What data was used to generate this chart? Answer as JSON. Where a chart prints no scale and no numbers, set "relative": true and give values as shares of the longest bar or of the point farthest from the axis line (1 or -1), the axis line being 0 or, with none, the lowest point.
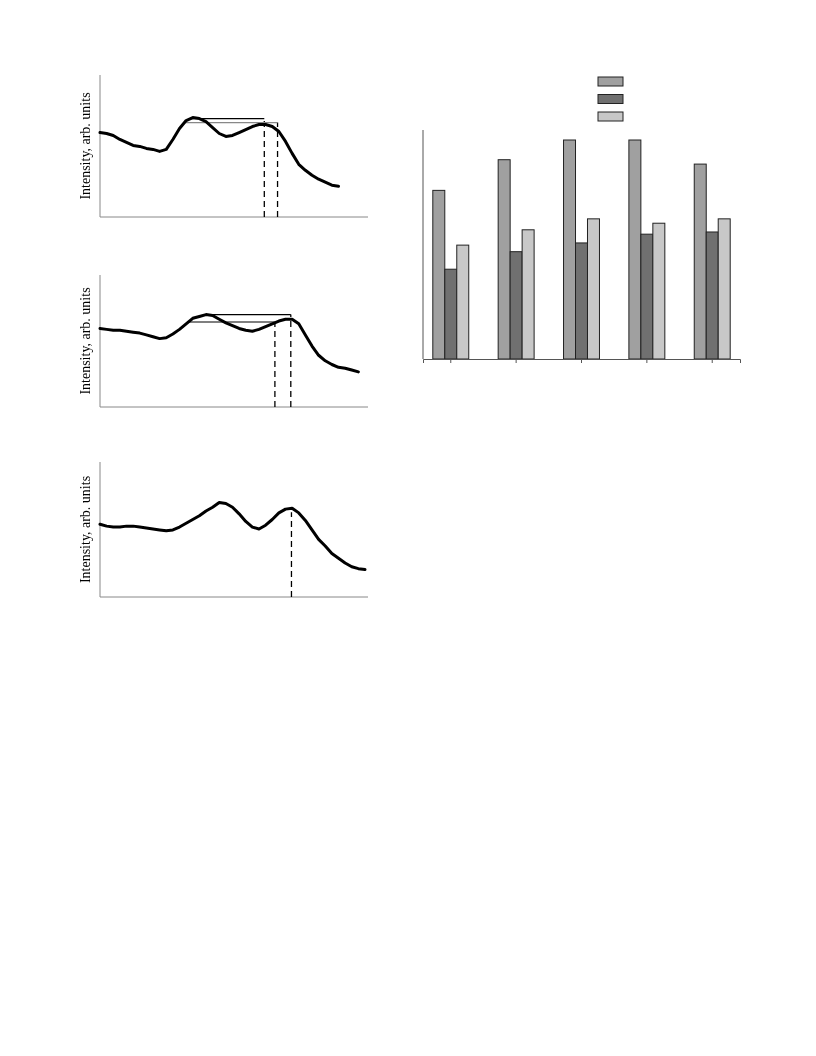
{
  "chart_data": [
    {
      "type": "line",
      "ylabel": "Intensity, arb. units",
      "relative": true,
      "categories": [
        null,
        null,
        null,
        null,
        null,
        null,
        null,
        null,
        null,
        null,
        null,
        null,
        null,
        null,
        null,
        null,
        null,
        null,
        null,
        null,
        null,
        null,
        null,
        null,
        null,
        null,
        null,
        null,
        null,
        null,
        null,
        null,
        null,
        null,
        null,
        null,
        null,
        null,
        null,
        null,
        null
      ],
      "series": [
        {
          "color": "#000000",
          "values": [
            0.85,
            0.84,
            0.82,
            0.78,
            0.75,
            0.72,
            0.71,
            0.69,
            0.68,
            0.66,
            0.68,
            0.78,
            0.89,
            0.97,
            1,
            0.99,
            0.96,
            0.9,
            0.84,
            0.81,
            0.82,
            0.85,
            0.88,
            0.91,
            0.93,
            0.93,
            0.91,
            0.86,
            0.76,
            0.64,
            0.53,
            0.47,
            0.42,
            0.38,
            0.35,
            0.32,
            0.31,
            null,
            null,
            null,
            null
          ]
        }
      ]
    },
    {
      "type": "line",
      "ylabel": "Intensity, arb. units",
      "relative": true,
      "categories": [
        null,
        null,
        null,
        null,
        null,
        null,
        null,
        null,
        null,
        null,
        null,
        null,
        null,
        null,
        null,
        null,
        null,
        null,
        null,
        null,
        null,
        null,
        null,
        null,
        null,
        null,
        null,
        null,
        null,
        null,
        null,
        null,
        null,
        null,
        null,
        null,
        null,
        null,
        null,
        null,
        null
      ],
      "series": [
        {
          "color": "#000000",
          "values": [
            0.85,
            0.84,
            0.83,
            0.83,
            0.82,
            0.81,
            0.8,
            0.78,
            0.76,
            0.74,
            0.75,
            0.79,
            0.84,
            0.9,
            0.96,
            0.98,
            1,
            0.99,
            0.95,
            0.91,
            0.88,
            0.85,
            0.83,
            0.82,
            0.84,
            0.87,
            0.9,
            0.93,
            0.95,
            0.95,
            0.9,
            0.78,
            0.66,
            0.56,
            0.5,
            0.46,
            0.43,
            0.42,
            0.4,
            0.38,
            null
          ]
        }
      ]
    },
    {
      "type": "line",
      "ylabel": "Intensity, arb. units",
      "relative": true,
      "categories": [
        null,
        null,
        null,
        null,
        null,
        null,
        null,
        null,
        null,
        null,
        null,
        null,
        null,
        null,
        null,
        null,
        null,
        null,
        null,
        null,
        null,
        null,
        null,
        null,
        null,
        null,
        null,
        null,
        null,
        null,
        null,
        null,
        null,
        null,
        null,
        null,
        null,
        null,
        null,
        null,
        null
      ],
      "series": [
        {
          "color": "#000000",
          "values": [
            0.77,
            0.75,
            0.74,
            0.74,
            0.75,
            0.75,
            0.74,
            0.73,
            0.72,
            0.71,
            0.7,
            0.71,
            0.74,
            0.78,
            0.82,
            0.86,
            0.91,
            0.95,
            1,
            0.99,
            0.95,
            0.88,
            0.8,
            0.74,
            0.72,
            0.76,
            0.82,
            0.89,
            0.93,
            0.94,
            0.89,
            0.81,
            0.71,
            0.61,
            0.54,
            0.46,
            0.41,
            0.36,
            0.32,
            0.3,
            0.29
          ]
        }
      ]
    },
    {
      "type": "bar",
      "relative": true,
      "categories": [
        null,
        null,
        null,
        null,
        null
      ],
      "series": [
        {
          "color": "#a0a0a0",
          "values": [
            0.77,
            0.91,
            1,
            1,
            0.89
          ]
        },
        {
          "color": "#707070",
          "values": [
            0.41,
            0.49,
            0.53,
            0.57,
            0.58
          ]
        },
        {
          "color": "#c8c8c8",
          "values": [
            0.52,
            0.59,
            0.64,
            0.62,
            0.64
          ]
        }
      ]
    }
  ]
}
